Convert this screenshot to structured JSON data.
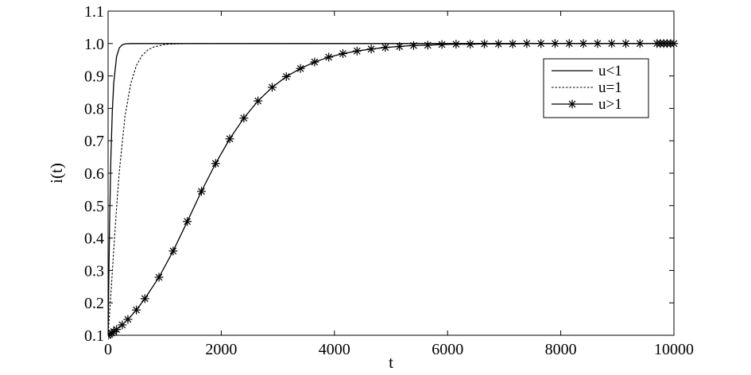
{
  "chart_data": {
    "type": "line",
    "xlabel": "t",
    "ylabel": "i(t)",
    "xlim": [
      0,
      10000
    ],
    "ylim": [
      0.1,
      1.1
    ],
    "x_ticks": [
      0,
      2000,
      4000,
      6000,
      8000,
      10000
    ],
    "x_tick_labels": [
      "0",
      "2000",
      "4000",
      "6000",
      "8000",
      "10000"
    ],
    "y_ticks": [
      0.1,
      0.2,
      0.3,
      0.4,
      0.5,
      0.6,
      0.7,
      0.8,
      0.9,
      1.0,
      1.1
    ],
    "y_tick_labels": [
      "0.1",
      "0.2",
      "0.3",
      "0.4",
      "0.5",
      "0.6",
      "0.7",
      "0.8",
      "0.9",
      "1.0",
      "1.1"
    ],
    "grid": false,
    "legend_position": "top-right",
    "series": [
      {
        "name": "u<1",
        "style": "solid",
        "marker": "none",
        "color": "#000000",
        "x": [
          0,
          10,
          25,
          50,
          75,
          100,
          150,
          200,
          250,
          300,
          400,
          500,
          700,
          1000,
          10000
        ],
        "y": [
          0.1,
          0.232,
          0.429,
          0.652,
          0.792,
          0.878,
          0.96,
          0.987,
          0.996,
          0.999,
          1.0,
          1.0,
          1.0,
          1.0,
          1.0
        ]
      },
      {
        "name": "u=1",
        "style": "dotted",
        "marker": "none",
        "color": "#000000",
        "x": [
          0,
          50,
          100,
          150,
          200,
          300,
          400,
          500,
          600,
          700,
          800,
          1000,
          1200,
          1500,
          2000,
          2500,
          3000,
          3500,
          4000,
          10000
        ],
        "y": [
          0.1,
          0.228,
          0.364,
          0.494,
          0.608,
          0.777,
          0.876,
          0.932,
          0.963,
          0.98,
          0.989,
          0.997,
          0.999,
          1.0,
          1.0,
          1.0,
          1.0,
          1.0,
          1.0,
          1.0
        ]
      },
      {
        "name": "u>1",
        "style": "solid",
        "marker": "asterisk",
        "color": "#000000",
        "x": [
          0,
          30,
          60,
          100,
          150,
          250,
          350,
          500,
          650,
          900,
          1150,
          1400,
          1650,
          1900,
          2150,
          2400,
          2650,
          2900,
          3150,
          3400,
          3650,
          3900,
          4150,
          4400,
          4650,
          4900,
          5150,
          5400,
          5650,
          5900,
          6150,
          6400,
          6650,
          6900,
          7150,
          7400,
          7650,
          7900,
          8150,
          8400,
          8650,
          8900,
          9150,
          9400,
          9700,
          9760,
          9820,
          9880,
          9940,
          10000
        ],
        "y": [
          0.1,
          0.103,
          0.107,
          0.111,
          0.118,
          0.132,
          0.149,
          0.178,
          0.213,
          0.279,
          0.36,
          0.451,
          0.544,
          0.63,
          0.706,
          0.77,
          0.823,
          0.865,
          0.898,
          0.923,
          0.943,
          0.958,
          0.969,
          0.977,
          0.983,
          0.988,
          0.991,
          0.994,
          0.995,
          0.997,
          0.998,
          0.998,
          0.999,
          0.999,
          0.999,
          1.0,
          1.0,
          1.0,
          1.0,
          1.0,
          1.0,
          1.0,
          1.0,
          1.0,
          1.0,
          1.0,
          1.0,
          1.0,
          1.0,
          1.0
        ]
      }
    ]
  }
}
